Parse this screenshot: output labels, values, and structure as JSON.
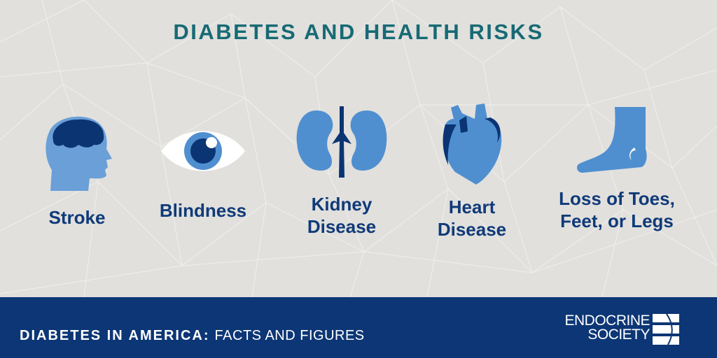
{
  "title": "DIABETES AND HEALTH RISKS",
  "risks": [
    {
      "label": "Stroke",
      "icon": "head-brain-icon"
    },
    {
      "label": "Blindness",
      "icon": "eye-icon"
    },
    {
      "label": "Kidney\nDisease",
      "icon": "kidneys-icon"
    },
    {
      "label": "Heart\nDisease",
      "icon": "heart-icon"
    },
    {
      "label": "Loss of Toes,\nFeet, or Legs",
      "icon": "foot-icon"
    }
  ],
  "footer": {
    "series_bold": "DIABETES IN AMERICA:",
    "series_light": "FACTS AND FIGURES",
    "logo_line1": "ENDOCRINE",
    "logo_line2": "SOCIETY"
  },
  "colors": {
    "background": "#e1e0dd",
    "title": "#176a74",
    "label": "#103a78",
    "icon_light": "#4f8fd0",
    "icon_dark": "#0b3473",
    "footer": "#0c3675"
  }
}
